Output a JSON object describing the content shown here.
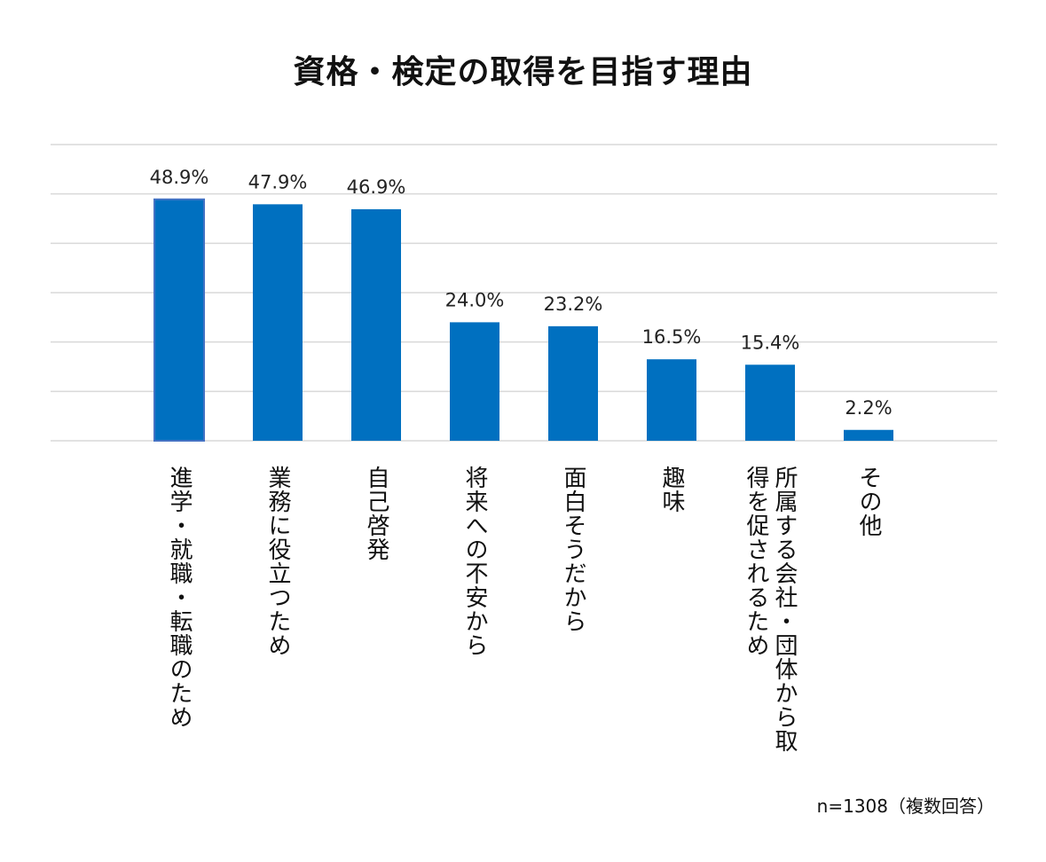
{
  "chart_data": {
    "type": "bar",
    "title": "資格・検定の取得を目指す理由",
    "categories": [
      "進学・就職・転職のため",
      "業務に役立つため",
      "自己啓発",
      "将来への不安から",
      "面白そうだから",
      "趣味",
      "所属する会社・団体から取得を促されるため",
      "その他"
    ],
    "values": [
      48.9,
      47.9,
      46.9,
      24.0,
      23.2,
      16.5,
      15.4,
      2.2
    ],
    "data_labels": [
      "48.9%",
      "47.9%",
      "46.9%",
      "24.0%",
      "23.2%",
      "16.5%",
      "15.4%",
      "2.2%"
    ],
    "ylim": [
      0,
      60
    ],
    "grid": true,
    "highlighted_index": 0,
    "note": "n=1308（複数回答）",
    "colors": {
      "bar": "#0070c0",
      "highlight_border": "#4472c4",
      "grid": "#d9d9d9"
    }
  }
}
